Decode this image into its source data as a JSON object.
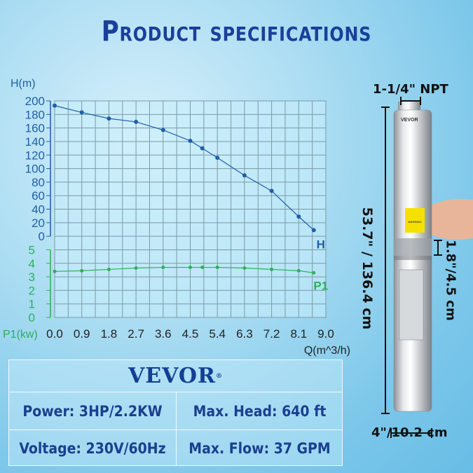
{
  "title": "Product specifications",
  "chart_data": {
    "type": "line",
    "xlabel": "Q(m^3/h)",
    "ylabel": "H(m)",
    "y2label": "P1(kw)",
    "xlim": [
      0,
      9.0
    ],
    "x_ticks": [
      "0.0",
      "0.9",
      "1.8",
      "2.7",
      "3.6",
      "4.5",
      "5.4",
      "6.3",
      "7.2",
      "8.1",
      "9.0"
    ],
    "ylim": [
      0,
      200
    ],
    "y_ticks": [
      "200",
      "180",
      "160",
      "140",
      "120",
      "100",
      "80",
      "60",
      "40",
      "20",
      "0"
    ],
    "y2lim": [
      0,
      5
    ],
    "y2_ticks": [
      "5",
      "4",
      "3",
      "2",
      "1",
      "0"
    ],
    "grid": true,
    "series": [
      {
        "name": "H",
        "color": "#1f5fa8",
        "x": [
          0.0,
          0.9,
          1.8,
          2.7,
          3.6,
          4.5,
          4.9,
          5.4,
          6.3,
          7.2,
          8.1,
          8.6
        ],
        "values": [
          193,
          183,
          174,
          169,
          157,
          141,
          130,
          116,
          90,
          67,
          29,
          9
        ]
      },
      {
        "name": "P1",
        "color": "#2fae5a",
        "x": [
          0.0,
          0.9,
          1.8,
          2.7,
          3.6,
          4.5,
          4.9,
          5.4,
          6.3,
          7.2,
          8.1,
          8.6
        ],
        "values": [
          3.4,
          3.45,
          3.55,
          3.65,
          3.7,
          3.7,
          3.7,
          3.7,
          3.65,
          3.55,
          3.45,
          3.3
        ]
      }
    ]
  },
  "specs": {
    "brand": "VEVOR",
    "registered": "®",
    "power": "Power: 3HP/2.2KW",
    "max_head": "Max. Head: 640 ft",
    "voltage": "Voltage: 230V/60Hz",
    "max_flow": "Max. Flow: 37 GPM"
  },
  "product": {
    "outlet": "1-1/4\" NPT",
    "length": "53.7\" / 136.4 cm",
    "inlet_height": "1.8\"/4.5 cm",
    "diameter": "4\"/10.2 cm",
    "label_brand": "VEVOR",
    "warning": "WARNING"
  }
}
